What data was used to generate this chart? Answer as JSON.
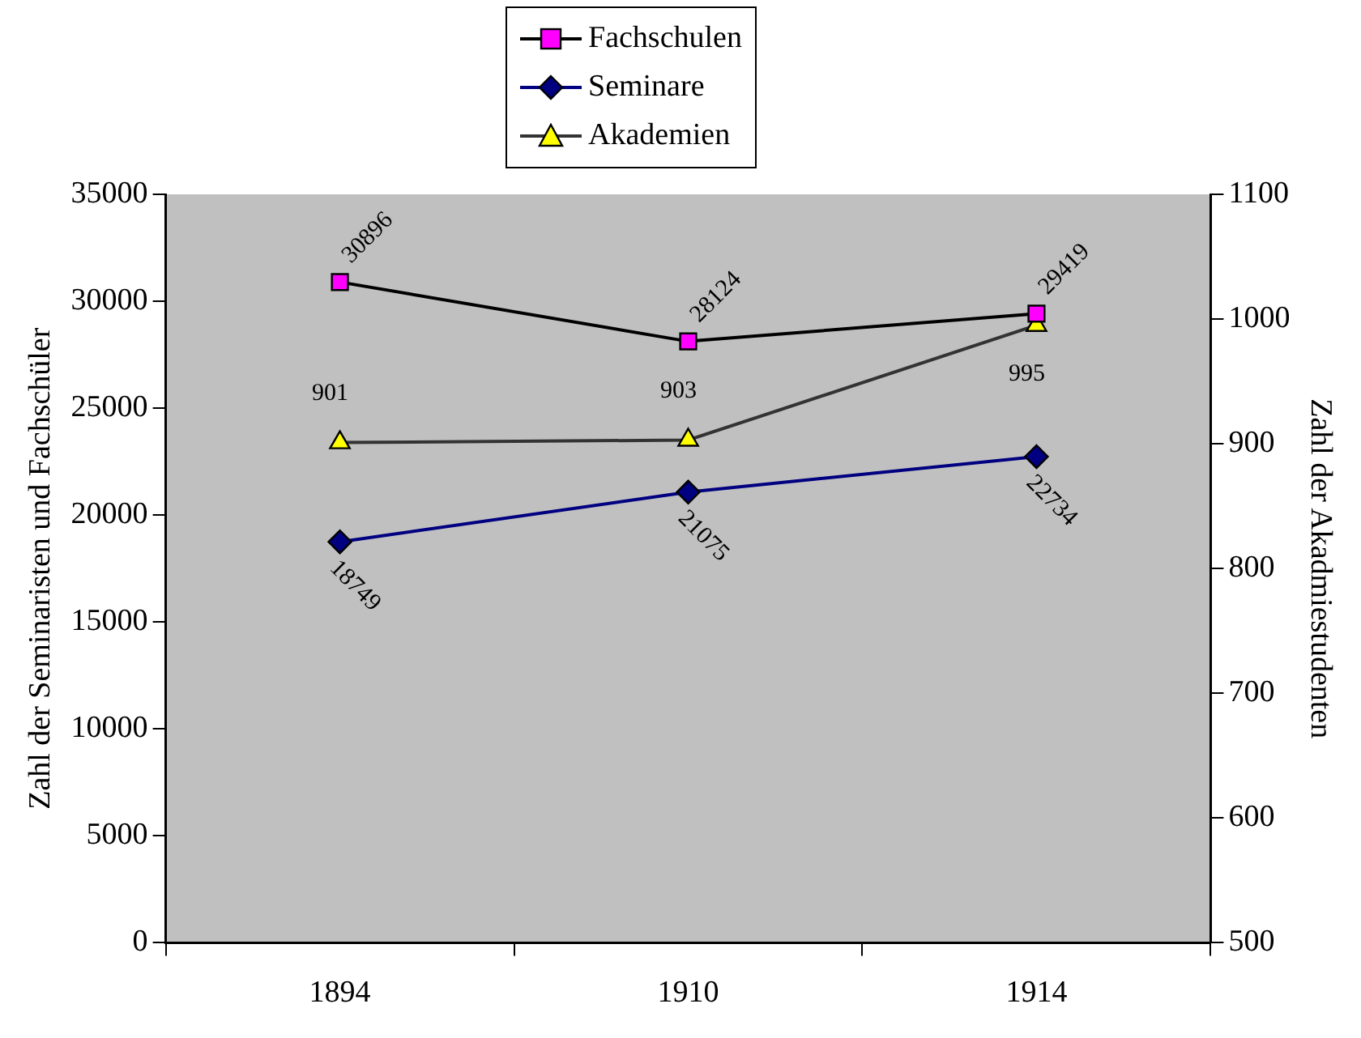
{
  "chart_data": {
    "type": "line",
    "categories": [
      "1894",
      "1910",
      "1914"
    ],
    "ylabel": "Zahl der Seminaristen und Fachschüler",
    "y2label": "Zahl der Akadmiestudenten",
    "ylim": [
      0,
      35000
    ],
    "yticks": [
      0,
      5000,
      10000,
      15000,
      20000,
      25000,
      30000,
      35000
    ],
    "y2lim": [
      500,
      1100
    ],
    "y2ticks": [
      500,
      600,
      700,
      800,
      900,
      1000,
      1100
    ],
    "grid": false,
    "legend": "top",
    "data_labels": true,
    "series": [
      {
        "name": "Fachschulen",
        "color": "#000000",
        "colors": [
          "#ff00ff",
          "#ff00ff",
          "#ff00ff"
        ],
        "marker": "square",
        "values": [
          30896,
          28124,
          29419
        ]
      },
      {
        "name": "Seminare",
        "color": "#000080",
        "colors": [
          "#000080",
          "#000080",
          "#000080"
        ],
        "marker": "diamond",
        "values": [
          18749,
          21075,
          22734
        ]
      },
      {
        "name": "Akademien",
        "color": "#333333",
        "colors": [
          "#ffff00",
          "#ffff00",
          "#ffff00"
        ],
        "marker": "triangle",
        "axis": "y2",
        "values": [
          901,
          903,
          995
        ]
      }
    ]
  }
}
